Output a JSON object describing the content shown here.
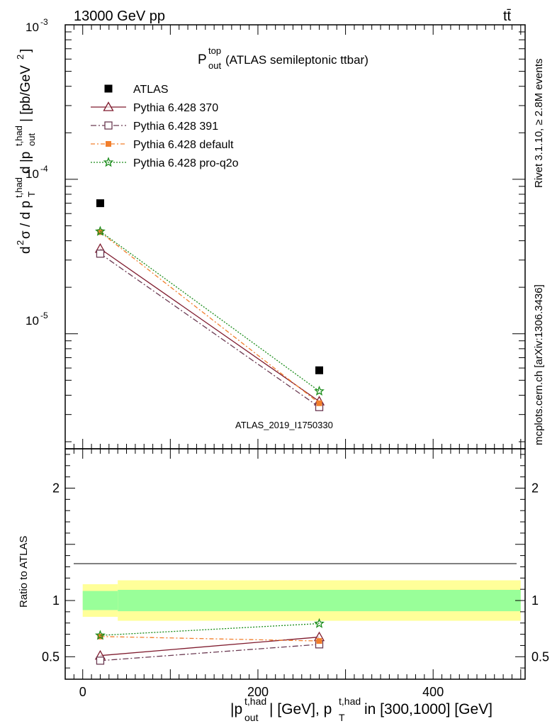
{
  "header": {
    "energy": "13000 GeV pp",
    "process": "tt̄",
    "watermark": "ATLAS_2019_I1750330",
    "side_rivet": "Rivet 3.1.10, ≥ 2.8M events",
    "side_mcplots": "mcplots.cern.ch [arXiv:1306.3436]"
  },
  "chart_data": [
    {
      "type": "line",
      "title": {
        "main": "P",
        "sup": "top",
        "sub": "out",
        "rest": " (ATLAS semileptonic ttbar)"
      },
      "ylabel": "d²σ / d p_T^{t,had} d |p_out^{t,had}| [pb/GeV²]",
      "yscale": "log",
      "ylim": [
        1.8e-06,
        0.001
      ],
      "xlim": [
        -20,
        505
      ],
      "ytick_labels": [
        "10^-3",
        "10^-4",
        "10^-5"
      ],
      "legend_position": "top-left",
      "series": [
        {
          "name": "ATLAS",
          "marker": "square",
          "color": "#000000",
          "x": [
            20,
            270
          ],
          "y": [
            7e-05,
            5.8e-06
          ]
        },
        {
          "name": "Pythia 6.428 370",
          "marker": "triangle-open",
          "color": "#7f1b2e",
          "dash": "",
          "x": [
            20,
            270
          ],
          "y": [
            3.55e-05,
            3.65e-06
          ]
        },
        {
          "name": "Pythia 6.428 391",
          "marker": "square-open",
          "color": "#6b3a52",
          "dash": "8,3,2,3",
          "x": [
            20,
            270
          ],
          "y": [
            3.3e-05,
            3.35e-06
          ]
        },
        {
          "name": "Pythia 6.428 default",
          "marker": "square-filled",
          "color": "#f27f2c",
          "dash": "6,3,2,3",
          "x": [
            20,
            270
          ],
          "y": [
            4.55e-05,
            3.55e-06
          ]
        },
        {
          "name": "Pythia 6.428 pro-q2o",
          "marker": "star",
          "color": "#1a8c1a",
          "dash": "2,2",
          "x": [
            20,
            270
          ],
          "y": [
            4.6e-05,
            4.25e-06
          ]
        }
      ]
    },
    {
      "type": "line",
      "ylabel": "Ratio to ATLAS",
      "xlabel": "|p_out^{t,had}| [GeV], p_T^{t,had} in [300,1000] [GeV]",
      "xlim": [
        -20,
        505
      ],
      "ylim": [
        0.3,
        2.35
      ],
      "x_ticks": [
        0,
        200,
        400
      ],
      "y_ticks": [
        0.5,
        1,
        2
      ],
      "reference_line": 1,
      "bands": [
        {
          "x": [
            0,
            40
          ],
          "inner": [
            0.915,
            1.085
          ],
          "outer": [
            0.855,
            1.145
          ]
        },
        {
          "x": [
            40,
            500
          ],
          "inner": [
            0.905,
            1.095
          ],
          "outer": [
            0.82,
            1.18
          ]
        }
      ],
      "series": [
        {
          "name": "Pythia 6.428 370",
          "x": [
            20,
            270
          ],
          "y": [
            0.51,
            0.675
          ]
        },
        {
          "name": "Pythia 6.428 391",
          "x": [
            20,
            270
          ],
          "y": [
            0.465,
            0.61
          ]
        },
        {
          "name": "Pythia 6.428 default",
          "x": [
            20,
            270
          ],
          "y": [
            0.68,
            0.64
          ]
        },
        {
          "name": "Pythia 6.428 pro-q2o",
          "x": [
            20,
            270
          ],
          "y": [
            0.69,
            0.795
          ]
        }
      ]
    }
  ],
  "colors": {
    "band_inner": "#99ff99",
    "band_outer": "#ffff99",
    "watermark": "#9a9a9a",
    "side_text": "#808080"
  }
}
